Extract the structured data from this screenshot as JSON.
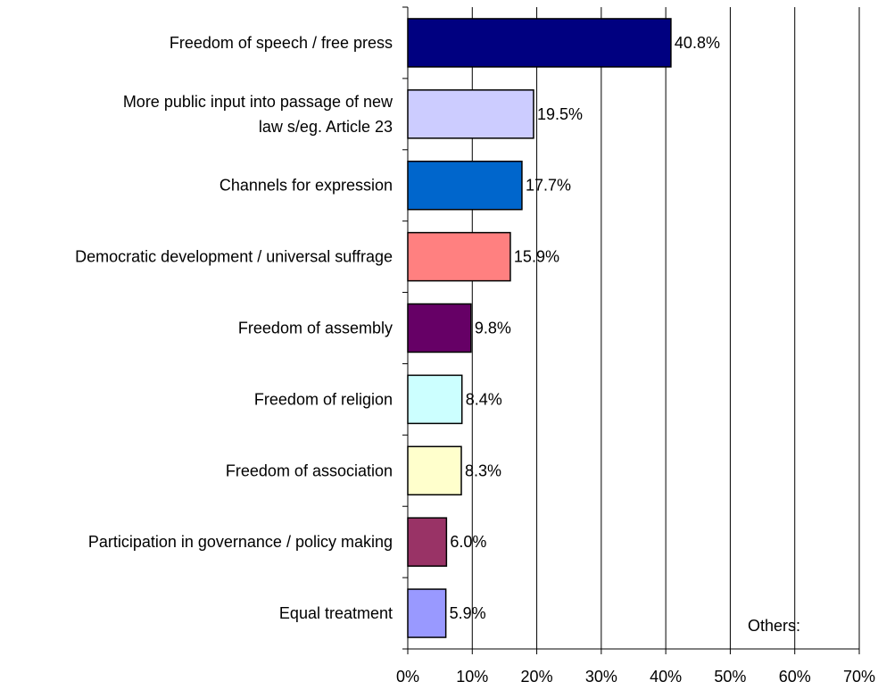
{
  "chart_data": {
    "type": "bar",
    "orientation": "horizontal",
    "categories": [
      [
        "Freedom of speech / free press"
      ],
      [
        "More public input into passage of new",
        "law s/eg. Article 23"
      ],
      [
        "Channels for expression"
      ],
      [
        "Democratic development / universal suffrage"
      ],
      [
        "Freedom of assembly"
      ],
      [
        "Freedom of religion"
      ],
      [
        "Freedom of association"
      ],
      [
        "Participation in governance / policy making"
      ],
      [
        "Equal treatment"
      ]
    ],
    "values": [
      40.8,
      19.5,
      17.7,
      15.9,
      9.8,
      8.4,
      8.3,
      6.0,
      5.9
    ],
    "value_labels": [
      "40.8%",
      "19.5%",
      "17.7%",
      "15.9%",
      "9.8%",
      "8.4%",
      "8.3%",
      "6.0%",
      "5.9%"
    ],
    "colors": [
      "#000080",
      "#CCCCFF",
      "#0066CC",
      "#FF8080",
      "#660066",
      "#CCFFFF",
      "#FFFFCC",
      "#993366",
      "#9999FF"
    ],
    "xlim": [
      0,
      70
    ],
    "x_ticks": [
      0,
      10,
      20,
      30,
      40,
      50,
      60,
      70
    ],
    "x_tick_labels": [
      "0%",
      "10%",
      "20%",
      "30%",
      "40%",
      "50%",
      "60%",
      "70%"
    ],
    "grid": "vertical",
    "annotation": "Others:"
  }
}
